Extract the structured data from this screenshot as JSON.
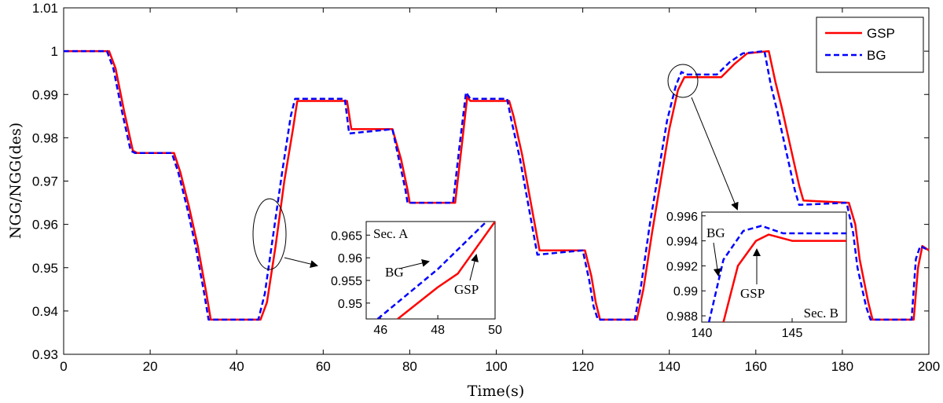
{
  "chart_data": [
    {
      "type": "line",
      "xlabel": "Time(s)",
      "ylabel": "NGG/NGG(des)",
      "xlim": [
        0,
        200
      ],
      "ylim": [
        0.93,
        1.01
      ],
      "x_ticks": [
        "0",
        "20",
        "40",
        "60",
        "80",
        "100",
        "120",
        "140",
        "160",
        "180",
        "200"
      ],
      "y_ticks": [
        "0.93",
        "0.94",
        "0.95",
        "0.96",
        "0.97",
        "0.98",
        "0.99",
        "1",
        "1.01"
      ],
      "legend": {
        "placement": "top-right",
        "entries": [
          "GSP",
          "BG"
        ]
      },
      "grid": false,
      "series": [
        {
          "name": "GSP",
          "color": "#ff0000",
          "style": "solid",
          "points": [
            [
              0,
              1.0
            ],
            [
              10.5,
              1.0
            ],
            [
              12,
              0.996
            ],
            [
              14,
              0.986
            ],
            [
              16,
              0.977
            ],
            [
              17,
              0.9765
            ],
            [
              25.5,
              0.9765
            ],
            [
              27,
              0.972
            ],
            [
              29,
              0.964
            ],
            [
              31,
              0.955
            ],
            [
              33,
              0.944
            ],
            [
              34,
              0.938
            ],
            [
              45.5,
              0.938
            ],
            [
              47,
              0.942
            ],
            [
              49,
              0.955
            ],
            [
              51,
              0.97
            ],
            [
              53,
              0.982
            ],
            [
              54,
              0.9885
            ],
            [
              65.5,
              0.9885
            ],
            [
              66.5,
              0.982
            ],
            [
              76,
              0.982
            ],
            [
              78,
              0.975
            ],
            [
              79.5,
              0.968
            ],
            [
              80,
              0.965
            ],
            [
              90.5,
              0.965
            ],
            [
              92,
              0.978
            ],
            [
              93.3,
              0.9895
            ],
            [
              94,
              0.9885
            ],
            [
              103,
              0.9885
            ],
            [
              104,
              0.985
            ],
            [
              106,
              0.976
            ],
            [
              108,
              0.965
            ],
            [
              110,
              0.954
            ],
            [
              120.5,
              0.954
            ],
            [
              122,
              0.948
            ],
            [
              123,
              0.942
            ],
            [
              124,
              0.938
            ],
            [
              132.5,
              0.938
            ],
            [
              134,
              0.945
            ],
            [
              136,
              0.958
            ],
            [
              138,
              0.97
            ],
            [
              140,
              0.982
            ],
            [
              142,
              0.991
            ],
            [
              143.5,
              0.994
            ],
            [
              152,
              0.994
            ],
            [
              155,
              0.997
            ],
            [
              158,
              0.9995
            ],
            [
              163,
              1.0
            ],
            [
              164.5,
              0.993
            ],
            [
              166,
              0.987
            ],
            [
              168,
              0.978
            ],
            [
              170,
              0.969
            ],
            [
              171,
              0.9655
            ],
            [
              181.5,
              0.965
            ],
            [
              183,
              0.96
            ],
            [
              184,
              0.952
            ],
            [
              186,
              0.942
            ],
            [
              187,
              0.938
            ],
            [
              196.5,
              0.938
            ],
            [
              197.5,
              0.95
            ],
            [
              198.5,
              0.955
            ],
            [
              200,
              0.954
            ]
          ]
        },
        {
          "name": "BG",
          "color": "#0000ff",
          "style": "dashed",
          "points": [
            [
              0,
              1.0
            ],
            [
              10,
              1.0
            ],
            [
              11.5,
              0.996
            ],
            [
              13.5,
              0.986
            ],
            [
              15.5,
              0.977
            ],
            [
              16.5,
              0.9765
            ],
            [
              25,
              0.9765
            ],
            [
              26.5,
              0.972
            ],
            [
              28.5,
              0.964
            ],
            [
              30.5,
              0.955
            ],
            [
              32.5,
              0.944
            ],
            [
              33.5,
              0.938
            ],
            [
              45,
              0.938
            ],
            [
              46.5,
              0.944
            ],
            [
              48.5,
              0.958
            ],
            [
              50.5,
              0.972
            ],
            [
              52.5,
              0.985
            ],
            [
              53.5,
              0.989
            ],
            [
              65,
              0.989
            ],
            [
              66,
              0.981
            ],
            [
              76,
              0.982
            ],
            [
              77.5,
              0.975
            ],
            [
              79,
              0.968
            ],
            [
              79.5,
              0.965
            ],
            [
              90,
              0.965
            ],
            [
              91.5,
              0.978
            ],
            [
              93,
              0.9905
            ],
            [
              94,
              0.989
            ],
            [
              102.5,
              0.989
            ],
            [
              103.5,
              0.984
            ],
            [
              105.5,
              0.975
            ],
            [
              107.5,
              0.964
            ],
            [
              109.5,
              0.953
            ],
            [
              120,
              0.954
            ],
            [
              121.5,
              0.947
            ],
            [
              122.5,
              0.941
            ],
            [
              123.5,
              0.938
            ],
            [
              132,
              0.938
            ],
            [
              133.5,
              0.946
            ],
            [
              135.5,
              0.96
            ],
            [
              137.5,
              0.972
            ],
            [
              139.5,
              0.984
            ],
            [
              141.5,
              0.992
            ],
            [
              142.8,
              0.9952
            ],
            [
              144,
              0.9946
            ],
            [
              151,
              0.9946
            ],
            [
              154,
              0.9975
            ],
            [
              157,
              0.9995
            ],
            [
              162,
              1.0
            ],
            [
              163.5,
              0.992
            ],
            [
              165,
              0.986
            ],
            [
              167,
              0.977
            ],
            [
              169,
              0.968
            ],
            [
              170,
              0.9645
            ],
            [
              181,
              0.965
            ],
            [
              182.5,
              0.958
            ],
            [
              183.5,
              0.95
            ],
            [
              185.5,
              0.941
            ],
            [
              186.5,
              0.938
            ],
            [
              196,
              0.938
            ],
            [
              197,
              0.952
            ],
            [
              198,
              0.955
            ],
            [
              200,
              0.954
            ]
          ]
        }
      ]
    },
    {
      "type": "line",
      "title": "Sec. A",
      "xlim": [
        45.5,
        50
      ],
      "ylim": [
        0.9465,
        0.968
      ],
      "x_ticks": [
        "46",
        "48",
        "50"
      ],
      "y_ticks": [
        "0.95",
        "0.955",
        "0.96",
        "0.965"
      ],
      "annotations": [
        "BG",
        "GSP"
      ],
      "series": [
        {
          "name": "GSP",
          "color": "#ff0000",
          "style": "solid",
          "points": [
            [
              46.6,
              0.9465
            ],
            [
              48,
              0.9535
            ],
            [
              48.7,
              0.9565
            ],
            [
              50,
              0.968
            ]
          ]
        },
        {
          "name": "BG",
          "color": "#0000ff",
          "style": "dashed",
          "points": [
            [
              45.9,
              0.9465
            ],
            [
              48,
              0.9575
            ],
            [
              49.7,
              0.968
            ]
          ]
        }
      ]
    },
    {
      "type": "line",
      "title": "Sec. B",
      "xlim": [
        140,
        148
      ],
      "ylim": [
        0.9875,
        0.9963
      ],
      "x_ticks": [
        "140",
        "145"
      ],
      "y_ticks": [
        "0.988",
        "0.99",
        "0.992",
        "0.994",
        "0.996"
      ],
      "annotations": [
        "BG",
        "GSP"
      ],
      "series": [
        {
          "name": "GSP",
          "color": "#ff0000",
          "style": "solid",
          "points": [
            [
              141.2,
              0.9875
            ],
            [
              142,
              0.992
            ],
            [
              143,
              0.994
            ],
            [
              143.7,
              0.9945
            ],
            [
              145,
              0.994
            ],
            [
              148,
              0.994
            ]
          ]
        },
        {
          "name": "BG",
          "color": "#0000ff",
          "style": "dashed",
          "points": [
            [
              140.4,
              0.9875
            ],
            [
              141.2,
              0.9925
            ],
            [
              142.3,
              0.9948
            ],
            [
              143.3,
              0.9952
            ],
            [
              144.5,
              0.9946
            ],
            [
              148,
              0.9946
            ]
          ]
        }
      ]
    }
  ]
}
